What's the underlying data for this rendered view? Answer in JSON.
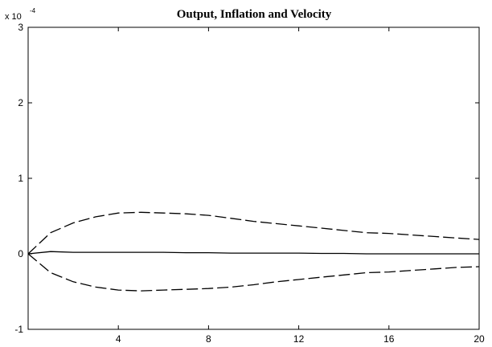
{
  "chart_data": {
    "type": "line",
    "title": "Output, Inflation and Velocity",
    "xlabel": "",
    "ylabel": "",
    "xlim": [
      0,
      20
    ],
    "ylim": [
      -1,
      3
    ],
    "y_scale_factor": {
      "base": "x 10",
      "exponent": "-4"
    },
    "x_ticks": [
      4,
      8,
      12,
      16,
      20
    ],
    "x_tick_labels": [
      "4",
      "8",
      "12",
      "16",
      "20"
    ],
    "y_ticks": [
      -1,
      0,
      1,
      2,
      3
    ],
    "y_tick_labels": [
      "-1",
      "0",
      "1",
      "2",
      "3"
    ],
    "grid": false,
    "legend": "none",
    "series": [
      {
        "style": "solid",
        "color": "#000000",
        "x": [
          0,
          1,
          2,
          3,
          4,
          5,
          6,
          7,
          8,
          9,
          10,
          11,
          12,
          13,
          14,
          15,
          16,
          17,
          18,
          19,
          20
        ],
        "y": [
          0,
          0.03,
          0.02,
          0.02,
          0.02,
          0.02,
          0.02,
          0.015,
          0.015,
          0.01,
          0.01,
          0.01,
          0.01,
          0.005,
          0.005,
          0.0,
          0.0,
          0.0,
          0.0,
          0.0,
          0.0
        ]
      },
      {
        "style": "dashed",
        "color": "#000000",
        "x": [
          0,
          1,
          2,
          3,
          4,
          5,
          6,
          7,
          8,
          9,
          10,
          11,
          12,
          13,
          14,
          15,
          16,
          17,
          18,
          19,
          20
        ],
        "y": [
          0,
          0.28,
          0.41,
          0.49,
          0.54,
          0.55,
          0.54,
          0.53,
          0.51,
          0.47,
          0.43,
          0.4,
          0.37,
          0.34,
          0.31,
          0.28,
          0.27,
          0.25,
          0.23,
          0.21,
          0.19
        ]
      },
      {
        "style": "dashed",
        "color": "#000000",
        "x": [
          0,
          1,
          2,
          3,
          4,
          5,
          6,
          7,
          8,
          9,
          10,
          11,
          12,
          13,
          14,
          15,
          16,
          17,
          18,
          19,
          20
        ],
        "y": [
          0,
          -0.25,
          -0.37,
          -0.44,
          -0.48,
          -0.49,
          -0.48,
          -0.47,
          -0.46,
          -0.44,
          -0.41,
          -0.37,
          -0.34,
          -0.31,
          -0.28,
          -0.25,
          -0.24,
          -0.22,
          -0.2,
          -0.18,
          -0.17
        ]
      }
    ]
  }
}
